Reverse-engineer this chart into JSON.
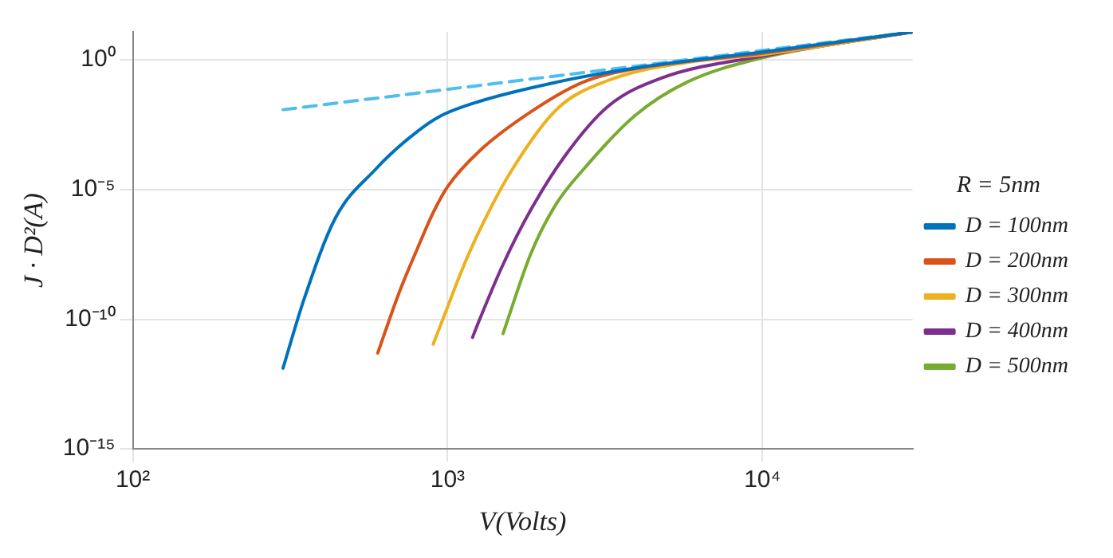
{
  "chart_data": {
    "type": "line",
    "xlabel": "V(Volts)",
    "ylabel": "J · D²(A)",
    "legend_title": "R = 5nm",
    "legend": "right",
    "log": "xy",
    "grid": true,
    "line_style": "solid",
    "marker": "none",
    "xlim": [
      100,
      30000
    ],
    "xticks": [
      {
        "value": 100,
        "label": "10²"
      },
      {
        "value": 1000,
        "label": "10³"
      },
      {
        "value": 10000,
        "label": "10⁴"
      }
    ],
    "ylim": [
      1e-15,
      12
    ],
    "yticks": [
      {
        "value": 1e-15,
        "label": "10⁻¹⁵"
      },
      {
        "value": 1e-10,
        "label": "10⁻¹⁰"
      },
      {
        "value": 1e-05,
        "label": "10⁻⁵"
      },
      {
        "value": 1,
        "label": "10⁰"
      }
    ],
    "series": [
      {
        "type": "line",
        "name": "D = 100nm",
        "color": "#0072bd",
        "x": [
          300,
          350,
          440,
          590,
          740,
          930,
          1260,
          2230,
          4000,
          10000,
          30000
        ],
        "values": [
          1.3e-12,
          6e-10,
          8e-07,
          6e-05,
          0.0008,
          0.006,
          0.025,
          0.14,
          0.5,
          2,
          12
        ]
      },
      {
        "type": "line",
        "name": "D = 200nm",
        "color": "#d95319",
        "x": [
          600,
          700,
          800,
          900,
          1000,
          1260,
          1840,
          2700,
          3930,
          10000,
          30000
        ],
        "values": [
          5e-12,
          1e-09,
          5e-08,
          1.3e-06,
          1.3e-05,
          0.0003,
          0.01,
          0.14,
          0.45,
          1.8,
          12
        ]
      },
      {
        "type": "line",
        "name": "D = 300nm",
        "color": "#edb120",
        "x": [
          900,
          1000,
          1100,
          1260,
          1590,
          2230,
          3230,
          5770,
          10000,
          30000
        ],
        "values": [
          1.1e-11,
          3e-10,
          6e-09,
          2.5e-07,
          5e-05,
          0.013,
          0.16,
          0.8,
          1.6,
          12
        ]
      },
      {
        "type": "line",
        "name": "D = 400nm",
        "color": "#7e2f8e",
        "x": [
          1200,
          1260,
          1500,
          1840,
          2360,
          3230,
          4780,
          10000,
          30000
        ],
        "values": [
          2e-11,
          9e-11,
          1.3e-08,
          1.7e-06,
          0.0002,
          0.016,
          0.2,
          1.4,
          12
        ]
      },
      {
        "type": "line",
        "name": "D = 500nm",
        "color": "#77ac30",
        "x": [
          1500,
          1840,
          2200,
          2700,
          3930,
          5770,
          10000,
          30000
        ],
        "values": [
          2.8e-11,
          3.5e-08,
          2.5e-06,
          6e-05,
          0.007,
          0.14,
          1.2,
          12
        ]
      },
      {
        "type": "line",
        "color": "#4dbeee",
        "line_style": "dashed",
        "x": [
          300,
          30000
        ],
        "values": [
          0.012,
          12
        ]
      }
    ]
  }
}
